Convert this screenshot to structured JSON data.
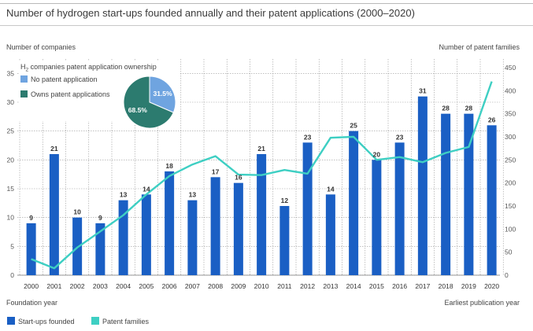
{
  "title": "Number of hydrogen start-ups founded annually and their patent applications (2000–2020)",
  "colors": {
    "bars": "#1a5fc4",
    "line": "#3ecfc3",
    "pie_owns": "#2c7b6f",
    "pie_none": "#6fa4e0"
  },
  "chart_data": {
    "type": "bar",
    "title": "Number of hydrogen start-ups founded annually and their patent applications (2000–2020)",
    "categories": [
      "2000",
      "2001",
      "2002",
      "2003",
      "2004",
      "2005",
      "2006",
      "2007",
      "2008",
      "2009",
      "2010",
      "2011",
      "2012",
      "2013",
      "2014",
      "2015",
      "2016",
      "2017",
      "2018",
      "2019",
      "2020"
    ],
    "series": [
      {
        "name": "Start-ups founded",
        "type": "bar",
        "axis": "left",
        "values": [
          9,
          21,
          10,
          9,
          13,
          14,
          18,
          13,
          17,
          16,
          21,
          12,
          23,
          14,
          25,
          20,
          23,
          31,
          28,
          28,
          26
        ]
      },
      {
        "name": "Patent families",
        "type": "line",
        "axis": "right",
        "values": [
          35,
          15,
          60,
          95,
          130,
          175,
          215,
          240,
          258,
          218,
          217,
          228,
          220,
          298,
          300,
          250,
          256,
          245,
          265,
          278,
          420
        ]
      }
    ],
    "ylabel": "Number of companies",
    "y2label": "Number of patent families",
    "xlabel": "Foundation year",
    "x2label": "Earliest publication year",
    "ylim": [
      0,
      37.5
    ],
    "y2lim": [
      0,
      468.75
    ],
    "yticks": [
      0,
      5,
      10,
      15,
      20,
      25,
      30,
      35
    ],
    "y2ticks": [
      0,
      50,
      100,
      150,
      200,
      250,
      300,
      350,
      400,
      450
    ],
    "grid": true,
    "legend_position": "bottom-left",
    "inset": {
      "type": "pie",
      "title_prefix": "H",
      "title_sub": "2",
      "title_rest": " companies patent application ownership",
      "slices": [
        {
          "label": "No patent application",
          "value": 31.5,
          "value_label": "31.5%"
        },
        {
          "label": "Owns patent applications",
          "value": 68.5,
          "value_label": "68.5%"
        }
      ]
    }
  }
}
